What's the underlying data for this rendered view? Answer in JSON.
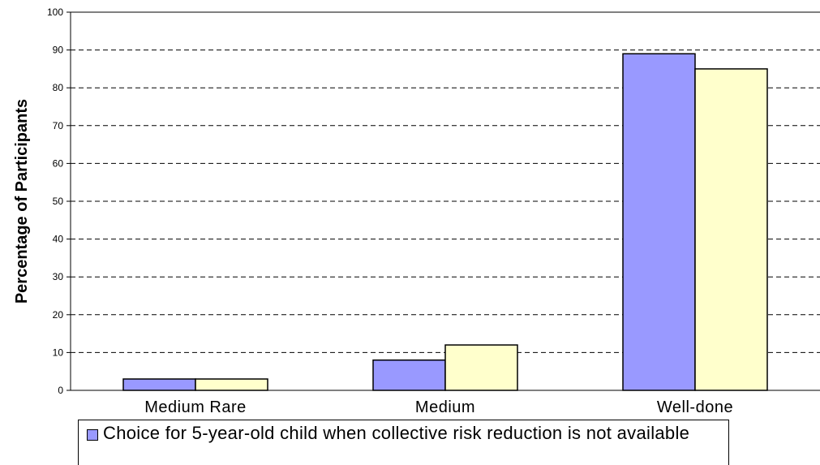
{
  "chart_data": {
    "type": "bar",
    "title": "",
    "xlabel": "",
    "ylabel": "Percentage of Participants",
    "ylim": [
      0,
      100
    ],
    "yticks": [
      0,
      10,
      20,
      30,
      40,
      50,
      60,
      70,
      80,
      90,
      100
    ],
    "grid": true,
    "categories": [
      "Medium Rare",
      "Medium",
      "Well-done"
    ],
    "series": [
      {
        "name": "Choice for 5-year-old child when collective risk reduction is not available",
        "values": [
          3,
          8,
          89
        ],
        "color": "#9999ff"
      },
      {
        "values": [
          3,
          12,
          85
        ],
        "color": "#ffffcc"
      }
    ],
    "legend": "bottom"
  }
}
